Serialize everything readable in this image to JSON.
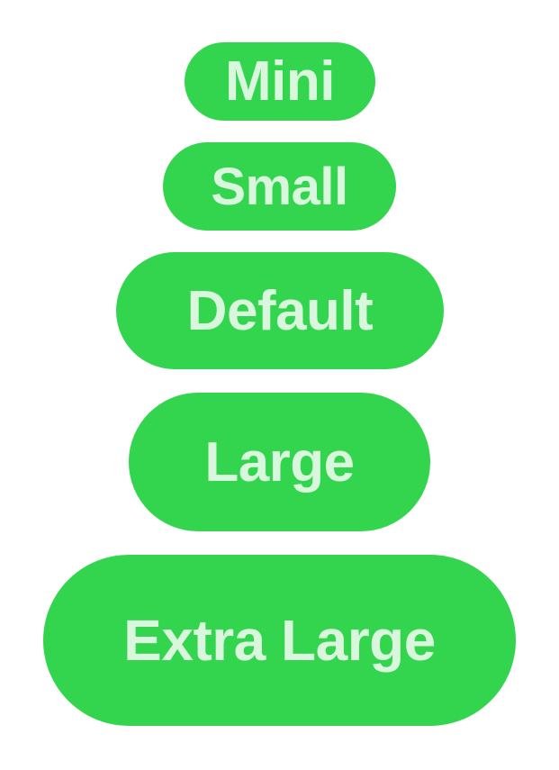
{
  "theme": {
    "button_background": "#34d54e",
    "button_text_color": "#d9f7dc",
    "page_background": "#ffffff"
  },
  "buttons": [
    {
      "id": "btn-mini",
      "label": "Mini"
    },
    {
      "id": "btn-small",
      "label": "Small"
    },
    {
      "id": "btn-default",
      "label": "Default"
    },
    {
      "id": "btn-large",
      "label": "Large"
    },
    {
      "id": "btn-extra-large",
      "label": "Extra Large"
    }
  ]
}
